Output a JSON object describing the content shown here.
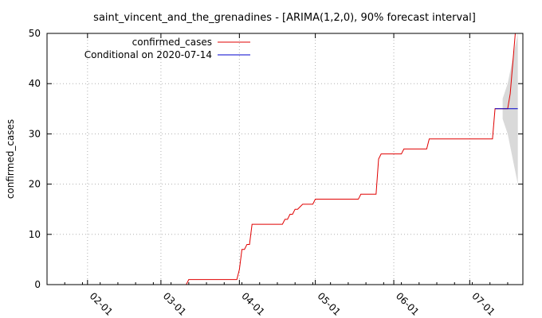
{
  "chart_data": {
    "type": "line",
    "title": "saint_vincent_and_the_grenadines -  [ARIMA(1,2,0), 90% forecast interval]",
    "ylabel": "confirmed_cases",
    "xlabel": "",
    "x_axis": "date",
    "xlim": [
      "2020-01-16",
      "2020-07-22"
    ],
    "ylim": [
      0,
      50
    ],
    "y_ticks": [
      0,
      10,
      20,
      30,
      40,
      50
    ],
    "x_ticks": [
      {
        "date": "2020-02-01",
        "label": "02-01"
      },
      {
        "date": "2020-03-01",
        "label": "03-01"
      },
      {
        "date": "2020-04-01",
        "label": "04-01"
      },
      {
        "date": "2020-05-01",
        "label": "05-01"
      },
      {
        "date": "2020-06-01",
        "label": "06-01"
      },
      {
        "date": "2020-07-01",
        "label": "07-01"
      }
    ],
    "grid": true,
    "legend_position": "top-left",
    "series": [
      {
        "name": "confirmed_cases",
        "color": "#e00000",
        "points": [
          [
            "2020-03-11",
            0
          ],
          [
            "2020-03-12",
            1
          ],
          [
            "2020-03-31",
            1
          ],
          [
            "2020-04-01",
            3
          ],
          [
            "2020-04-02",
            7
          ],
          [
            "2020-04-03",
            7
          ],
          [
            "2020-04-04",
            8
          ],
          [
            "2020-04-05",
            8
          ],
          [
            "2020-04-06",
            12
          ],
          [
            "2020-04-18",
            12
          ],
          [
            "2020-04-19",
            13
          ],
          [
            "2020-04-20",
            13
          ],
          [
            "2020-04-21",
            14
          ],
          [
            "2020-04-22",
            14
          ],
          [
            "2020-04-23",
            15
          ],
          [
            "2020-04-24",
            15
          ],
          [
            "2020-04-26",
            16
          ],
          [
            "2020-04-30",
            16
          ],
          [
            "2020-05-01",
            17
          ],
          [
            "2020-05-18",
            17
          ],
          [
            "2020-05-19",
            18
          ],
          [
            "2020-05-25",
            18
          ],
          [
            "2020-05-26",
            25
          ],
          [
            "2020-05-27",
            26
          ],
          [
            "2020-06-04",
            26
          ],
          [
            "2020-06-05",
            27
          ],
          [
            "2020-06-14",
            27
          ],
          [
            "2020-06-15",
            29
          ],
          [
            "2020-07-10",
            29
          ],
          [
            "2020-07-11",
            35
          ],
          [
            "2020-07-16",
            35
          ],
          [
            "2020-07-17",
            38
          ],
          [
            "2020-07-18",
            44
          ],
          [
            "2020-07-19",
            50
          ]
        ]
      },
      {
        "name": "Conditional on 2020-07-14",
        "color": "#0000cc",
        "points": [
          [
            "2020-07-11",
            35
          ],
          [
            "2020-07-20",
            35
          ]
        ]
      }
    ],
    "forecast_interval": {
      "color": "#d9d9d9",
      "level": "90%",
      "points": [
        [
          "2020-07-14",
          33,
          37
        ],
        [
          "2020-07-16",
          30,
          40
        ],
        [
          "2020-07-18",
          25,
          45
        ],
        [
          "2020-07-20",
          20,
          50
        ]
      ]
    }
  }
}
